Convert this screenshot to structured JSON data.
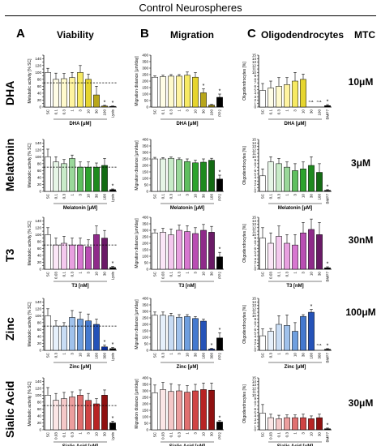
{
  "figure": {
    "title": "Control Neurospheres",
    "columns": [
      {
        "letter": "A",
        "title": "Viability"
      },
      {
        "letter": "B",
        "title": "Migration"
      },
      {
        "letter": "C",
        "title": "Oligodendrocytes"
      }
    ],
    "mtc_header": "MTC",
    "rows": [
      {
        "label": "DHA",
        "mtc": "10μM"
      },
      {
        "label": "Melatonin",
        "mtc": "3μM"
      },
      {
        "label": "T3",
        "mtc": "30nM"
      },
      {
        "label": "Zinc",
        "mtc": "100μM"
      },
      {
        "label": "Sialic Acid",
        "mtc": "30μM"
      }
    ]
  },
  "chart_data": [
    {
      "id": "dha-viability",
      "type": "bar",
      "ylabel": "Metabolic activity [% SC]",
      "xlabel": "DHA [μM]",
      "categories": [
        "SC",
        "0.1",
        "0.3",
        "1",
        "3",
        "10",
        "30",
        "100",
        "Lysis"
      ],
      "values": [
        100,
        80,
        82,
        85,
        100,
        80,
        35,
        3,
        2
      ],
      "errors": [
        12,
        18,
        15,
        15,
        20,
        15,
        25,
        2,
        1
      ],
      "ylim": [
        0,
        150
      ],
      "yticks": [
        0,
        10,
        20,
        30,
        40,
        50,
        60,
        70,
        80,
        90,
        100,
        110,
        120,
        130,
        140,
        150
      ],
      "ytick_labels_every": 2,
      "dashed_line": 70,
      "stars": [
        "",
        "",
        "",
        "",
        "",
        "",
        "",
        "*",
        "*"
      ],
      "colors": [
        "#ffffff",
        "#fffde6",
        "#fffacc",
        "#fff4a0",
        "#f7ea63",
        "#e6d52e",
        "#b8a61a",
        "#8a7c10",
        "#000000"
      ]
    },
    {
      "id": "dha-migration",
      "type": "bar",
      "ylabel": "Migration distance [μm/day]",
      "xlabel": "DHA [μM]",
      "categories": [
        "SC",
        "0.1",
        "0.3",
        "1",
        "3",
        "10",
        "30",
        "100",
        "PP2"
      ],
      "values": [
        230,
        235,
        238,
        238,
        245,
        230,
        110,
        15,
        75
      ],
      "errors": [
        10,
        10,
        12,
        12,
        25,
        35,
        30,
        5,
        25
      ],
      "ylim": [
        0,
        400
      ],
      "yticks": [
        0,
        50,
        100,
        150,
        200,
        250,
        300,
        350,
        400
      ],
      "ytick_labels_every": 1,
      "stars": [
        "",
        "",
        "",
        "",
        "",
        "",
        "*",
        "",
        "*"
      ],
      "colors": [
        "#ffffff",
        "#fffde6",
        "#fffacc",
        "#fff4a0",
        "#f7ea63",
        "#e6d52e",
        "#b8a61a",
        "#8a7c10",
        "#000000"
      ]
    },
    {
      "id": "dha-oligo",
      "type": "bar",
      "ylabel": "Oligodendrocytes [%]",
      "xlabel": "DHA [μM]",
      "categories": [
        "SC",
        "0.1",
        "0.3",
        "1",
        "3",
        "10",
        "30",
        "100",
        "BMP7"
      ],
      "values": [
        4.8,
        5.5,
        6.0,
        6.5,
        7.5,
        8.0,
        null,
        null,
        0.4
      ],
      "errors": [
        2.0,
        2.0,
        2.5,
        2.0,
        2.5,
        1.5,
        null,
        null,
        0.3
      ],
      "ylim": [
        0,
        15
      ],
      "yticks": [
        0,
        1,
        2,
        3,
        4,
        5,
        6,
        7,
        8,
        9,
        10,
        11,
        12,
        13,
        14,
        15
      ],
      "ytick_labels_every": 1,
      "stars": [
        "",
        "",
        "",
        "",
        "",
        "",
        "",
        "",
        "*"
      ],
      "na": [
        "",
        "",
        "",
        "",
        "",
        "",
        "n.a.",
        "n.a.",
        ""
      ],
      "colors": [
        "#ffffff",
        "#fffde6",
        "#fffacc",
        "#fff4a0",
        "#f7ea63",
        "#e6d52e",
        "#b8a61a",
        "#8a7c10",
        "#000000"
      ]
    },
    {
      "id": "mel-viability",
      "type": "bar",
      "ylabel": "Metabolic activity [% SC]",
      "xlabel": "Melatonin [μM]",
      "categories": [
        "SC",
        "0.1",
        "0.3",
        "1",
        "3",
        "10",
        "30",
        "100",
        "Lysis"
      ],
      "values": [
        100,
        85,
        80,
        95,
        70,
        70,
        70,
        75,
        5
      ],
      "errors": [
        22,
        15,
        12,
        10,
        15,
        15,
        12,
        20,
        2
      ],
      "ylim": [
        0,
        150
      ],
      "yticks": [
        0,
        10,
        20,
        30,
        40,
        50,
        60,
        70,
        80,
        90,
        100,
        110,
        120,
        130,
        140,
        150
      ],
      "ytick_labels_every": 2,
      "dashed_line": 70,
      "stars": [
        "",
        "",
        "",
        "",
        "",
        "",
        "",
        "",
        "*"
      ],
      "colors": [
        "#ffffff",
        "#e6f5e6",
        "#c8ebc8",
        "#9ad89a",
        "#5fbf5f",
        "#2ea32e",
        "#1e8a1e",
        "#136b13",
        "#000000"
      ]
    },
    {
      "id": "mel-migration",
      "type": "bar",
      "ylabel": "Migration distance [μm/day]",
      "xlabel": "Melatonin [μM]",
      "categories": [
        "SC",
        "0.1",
        "0.3",
        "1",
        "3",
        "10",
        "30",
        "100",
        "PP2"
      ],
      "values": [
        250,
        250,
        255,
        245,
        230,
        220,
        225,
        240,
        95
      ],
      "errors": [
        12,
        10,
        10,
        12,
        20,
        20,
        25,
        15,
        30
      ],
      "ylim": [
        0,
        400
      ],
      "yticks": [
        0,
        50,
        100,
        150,
        200,
        250,
        300,
        350,
        400
      ],
      "ytick_labels_every": 1,
      "stars": [
        "",
        "",
        "",
        "",
        "",
        "",
        "",
        "",
        "*"
      ],
      "colors": [
        "#ffffff",
        "#e6f5e6",
        "#c8ebc8",
        "#9ad89a",
        "#5fbf5f",
        "#2ea32e",
        "#1e8a1e",
        "#136b13",
        "#000000"
      ]
    },
    {
      "id": "mel-oligo",
      "type": "bar",
      "ylabel": "Oligodendrocytes [%]",
      "xlabel": "Melatonin [μM]",
      "categories": [
        "SC",
        "0.1",
        "0.3",
        "1",
        "3",
        "10",
        "30",
        "100",
        "BMP7"
      ],
      "values": [
        4.5,
        8.5,
        8.0,
        7.0,
        6.0,
        6.5,
        7.5,
        5.5,
        0.3
      ],
      "errors": [
        2.0,
        1.5,
        1.5,
        1.5,
        2.0,
        2.0,
        2.5,
        2.5,
        0.2
      ],
      "ylim": [
        0,
        15
      ],
      "yticks": [
        0,
        1,
        2,
        3,
        4,
        5,
        6,
        7,
        8,
        9,
        10,
        11,
        12,
        13,
        14,
        15
      ],
      "ytick_labels_every": 1,
      "stars": [
        "",
        "",
        "",
        "",
        "",
        "",
        "",
        "",
        "*"
      ],
      "colors": [
        "#ffffff",
        "#e6f5e6",
        "#c8ebc8",
        "#9ad89a",
        "#5fbf5f",
        "#2ea32e",
        "#1e8a1e",
        "#136b13",
        "#000000"
      ]
    },
    {
      "id": "t3-viability",
      "type": "bar",
      "ylabel": "Metabolic activity [% SC]",
      "xlabel": "T3 [nM]",
      "categories": [
        "SC",
        "0.03",
        "0.1",
        "0.3",
        "1",
        "3",
        "10",
        "30",
        "Lysis"
      ],
      "values": [
        100,
        70,
        75,
        70,
        70,
        65,
        100,
        90,
        5
      ],
      "errors": [
        20,
        20,
        20,
        20,
        20,
        20,
        25,
        22,
        3
      ],
      "ylim": [
        0,
        150
      ],
      "yticks": [
        0,
        10,
        20,
        30,
        40,
        50,
        60,
        70,
        80,
        90,
        100,
        110,
        120,
        130,
        140,
        150
      ],
      "ytick_labels_every": 2,
      "dashed_line": 70,
      "stars": [
        "",
        "",
        "",
        "",
        "",
        "",
        "",
        "",
        "*"
      ],
      "colors": [
        "#ffffff",
        "#fbe6f7",
        "#f4c8ee",
        "#e8a0e0",
        "#d777d0",
        "#b94eb3",
        "#8f2a8a",
        "#6a1a66",
        "#000000"
      ]
    },
    {
      "id": "t3-migration",
      "type": "bar",
      "ylabel": "Migration distance [μm/day]",
      "xlabel": "T3 [nM]",
      "categories": [
        "SC",
        "0.03",
        "0.1",
        "0.3",
        "1",
        "3",
        "10",
        "30",
        "PP2"
      ],
      "values": [
        280,
        285,
        265,
        300,
        290,
        275,
        300,
        285,
        95
      ],
      "errors": [
        25,
        30,
        45,
        40,
        45,
        45,
        45,
        45,
        35
      ],
      "ylim": [
        0,
        400
      ],
      "yticks": [
        0,
        50,
        100,
        150,
        200,
        250,
        300,
        350,
        400
      ],
      "ytick_labels_every": 1,
      "stars": [
        "",
        "",
        "",
        "",
        "",
        "",
        "",
        "",
        "*"
      ],
      "colors": [
        "#ffffff",
        "#fbe6f7",
        "#f4c8ee",
        "#e8a0e0",
        "#d777d0",
        "#b94eb3",
        "#8f2a8a",
        "#6a1a66",
        "#000000"
      ]
    },
    {
      "id": "t3-oligo",
      "type": "bar",
      "ylabel": "Oligodendrocytes [%]",
      "xlabel": "T3 [nM]",
      "categories": [
        "SC",
        "0.03",
        "0.1",
        "0.3",
        "1",
        "3",
        "10",
        "30",
        "BMP7"
      ],
      "values": [
        9.0,
        7.5,
        9.5,
        7.5,
        7.0,
        10.5,
        11.5,
        10.0,
        0.4
      ],
      "errors": [
        3.0,
        3.0,
        3.0,
        2.5,
        3.0,
        3.0,
        3.0,
        3.5,
        0.3
      ],
      "ylim": [
        0,
        15
      ],
      "yticks": [
        0,
        1,
        2,
        3,
        4,
        5,
        6,
        7,
        8,
        9,
        10,
        11,
        12,
        13,
        14,
        15
      ],
      "ytick_labels_every": 1,
      "stars": [
        "",
        "",
        "",
        "",
        "",
        "",
        "",
        "",
        "*"
      ],
      "colors": [
        "#ffffff",
        "#fbe6f7",
        "#f4c8ee",
        "#e8a0e0",
        "#d777d0",
        "#b94eb3",
        "#8f2a8a",
        "#6a1a66",
        "#000000"
      ]
    },
    {
      "id": "zinc-viability",
      "type": "bar",
      "ylabel": "Metabolic activity [% SC]",
      "xlabel": "Zinc [μM]",
      "categories": [
        "SC",
        "0.3",
        "1",
        "3",
        "10",
        "30",
        "100",
        "300",
        "Lysis"
      ],
      "values": [
        100,
        70,
        70,
        95,
        90,
        85,
        75,
        10,
        5
      ],
      "errors": [
        20,
        15,
        10,
        20,
        20,
        20,
        15,
        5,
        3
      ],
      "ylim": [
        0,
        150
      ],
      "yticks": [
        0,
        10,
        20,
        30,
        40,
        50,
        60,
        70,
        80,
        90,
        100,
        110,
        120,
        130,
        140,
        150
      ],
      "ytick_labels_every": 2,
      "dashed_line": 70,
      "stars": [
        "",
        "",
        "",
        "",
        "",
        "",
        "",
        "*",
        "*"
      ],
      "colors": [
        "#ffffff",
        "#e6f0fb",
        "#c8dcf4",
        "#a0c2ec",
        "#6f9fdf",
        "#4479cf",
        "#2452b8",
        "#0a2e99",
        "#000000"
      ]
    },
    {
      "id": "zinc-migration",
      "type": "bar",
      "ylabel": "Migration distance [μm/day]",
      "xlabel": "Zinc [μM]",
      "categories": [
        "SC",
        "0.3",
        "1",
        "3",
        "10",
        "30",
        "100",
        "300",
        "PP2"
      ],
      "values": [
        270,
        270,
        265,
        255,
        260,
        245,
        225,
        10,
        95
      ],
      "errors": [
        25,
        25,
        20,
        20,
        15,
        15,
        15,
        5,
        40
      ],
      "ylim": [
        0,
        400
      ],
      "yticks": [
        0,
        50,
        100,
        150,
        200,
        250,
        300,
        350,
        400
      ],
      "ytick_labels_every": 1,
      "stars": [
        "",
        "",
        "",
        "",
        "",
        "",
        "",
        "*",
        "*"
      ],
      "colors": [
        "#ffffff",
        "#e6f0fb",
        "#c8dcf4",
        "#a0c2ec",
        "#6f9fdf",
        "#4479cf",
        "#2452b8",
        "#0a2e99",
        "#000000"
      ]
    },
    {
      "id": "zinc-oligo",
      "type": "bar",
      "ylabel": "Oligodendrocytes [%]",
      "xlabel": "Zinc [μM]",
      "categories": [
        "SC",
        "0.3",
        "1",
        "3",
        "10",
        "30",
        "100",
        "300",
        "BMP7"
      ],
      "values": [
        4.2,
        5.5,
        7.5,
        7.2,
        5.5,
        9.8,
        11.0,
        null,
        0.3
      ],
      "errors": [
        2.0,
        0.8,
        2.5,
        3.0,
        2.5,
        0.5,
        0.8,
        null,
        0.2
      ],
      "ylim": [
        0,
        15
      ],
      "yticks": [
        0,
        1,
        2,
        3,
        4,
        5,
        6,
        7,
        8,
        9,
        10,
        11,
        12,
        13,
        14,
        15
      ],
      "ytick_labels_every": 1,
      "stars": [
        "",
        "",
        "",
        "",
        "",
        "",
        "*",
        "",
        "*"
      ],
      "na": [
        "",
        "",
        "",
        "",
        "",
        "",
        "",
        "n.a.",
        ""
      ],
      "colors": [
        "#ffffff",
        "#e6f0fb",
        "#c8dcf4",
        "#a0c2ec",
        "#6f9fdf",
        "#4479cf",
        "#2452b8",
        "#0a2e99",
        "#000000"
      ]
    },
    {
      "id": "sia-viability",
      "type": "bar",
      "ylabel": "Metabolic activity [% SC]",
      "xlabel": "Sialic Acid [μM]",
      "categories": [
        "SC",
        "0.03",
        "0.1",
        "0.3",
        "1",
        "3",
        "10",
        "30",
        "Lysis"
      ],
      "values": [
        100,
        85,
        90,
        95,
        100,
        85,
        75,
        100,
        20
      ],
      "errors": [
        22,
        20,
        18,
        15,
        15,
        20,
        15,
        15,
        5
      ],
      "ylim": [
        0,
        150
      ],
      "yticks": [
        0,
        10,
        20,
        30,
        40,
        50,
        60,
        70,
        80,
        90,
        100,
        110,
        120,
        130,
        140,
        150
      ],
      "ytick_labels_every": 2,
      "dashed_line": 70,
      "stars": [
        "",
        "",
        "",
        "",
        "",
        "",
        "",
        "",
        "*"
      ],
      "colors": [
        "#ffffff",
        "#fbe6e6",
        "#f4c8c8",
        "#ec9e9e",
        "#e07070",
        "#d04444",
        "#b82424",
        "#8f1010",
        "#000000"
      ]
    },
    {
      "id": "sia-migration",
      "type": "bar",
      "ylabel": "Migration distance [μm/day]",
      "xlabel": "Sialic Acid [μM]",
      "categories": [
        "SC",
        "0.03",
        "0.1",
        "0.3",
        "1",
        "3",
        "10",
        "30",
        "PP2"
      ],
      "values": [
        285,
        310,
        295,
        300,
        290,
        300,
        310,
        305,
        60
      ],
      "errors": [
        60,
        55,
        60,
        45,
        50,
        50,
        50,
        55,
        10
      ],
      "ylim": [
        0,
        400
      ],
      "yticks": [
        0,
        50,
        100,
        150,
        200,
        250,
        300,
        350,
        400
      ],
      "ytick_labels_every": 1,
      "stars": [
        "",
        "",
        "",
        "",
        "",
        "",
        "",
        "",
        "*"
      ],
      "colors": [
        "#ffffff",
        "#fbe6e6",
        "#f4c8c8",
        "#ec9e9e",
        "#e07070",
        "#d04444",
        "#b82424",
        "#8f1010",
        "#000000"
      ]
    },
    {
      "id": "sia-oligo",
      "type": "bar",
      "ylabel": "Oligodendrocytes [%]",
      "xlabel": "Sialic Acid [μM]",
      "categories": [
        "SC",
        "0.03",
        "0.1",
        "0.3",
        "1",
        "3",
        "10",
        "30",
        "BMP7"
      ],
      "values": [
        4.8,
        3.5,
        3.2,
        3.5,
        3.5,
        3.5,
        3.2,
        3.5,
        0.3
      ],
      "errors": [
        2.5,
        1.0,
        1.0,
        0.8,
        0.8,
        1.0,
        0.8,
        1.0,
        0.2
      ],
      "ylim": [
        0,
        15
      ],
      "yticks": [
        0,
        1,
        2,
        3,
        4,
        5,
        6,
        7,
        8,
        9,
        10,
        11,
        12,
        13,
        14,
        15
      ],
      "ytick_labels_every": 1,
      "stars": [
        "",
        "",
        "",
        "",
        "",
        "",
        "",
        "",
        "*"
      ],
      "colors": [
        "#ffffff",
        "#fbe6e6",
        "#f4c8c8",
        "#ec9e9e",
        "#e07070",
        "#d04444",
        "#b82424",
        "#8f1010",
        "#000000"
      ]
    }
  ]
}
